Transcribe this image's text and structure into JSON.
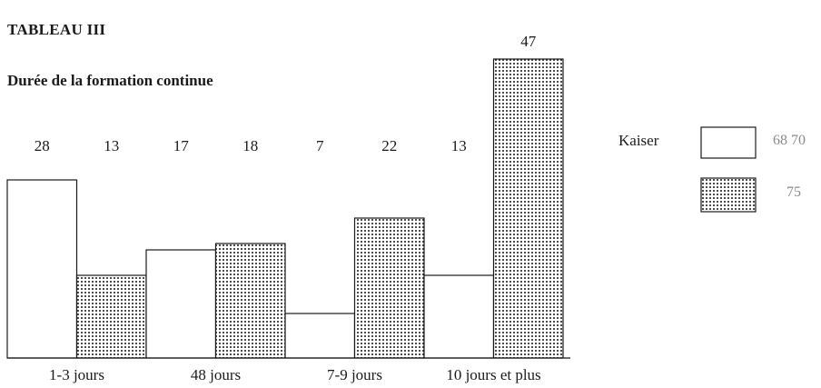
{
  "title": "TABLEAU III",
  "subtitle": "Durée de la formation continue",
  "legend": {
    "label": "Kaiser",
    "items": [
      {
        "label": "68 70",
        "pattern": "open"
      },
      {
        "label": "75",
        "pattern": "dotted"
      }
    ]
  },
  "chart_data": {
    "type": "bar",
    "title": "Durée de la formation continue",
    "categories": [
      "1-3 jours",
      "48 jours",
      "7-9 jours",
      "10 jours et plus"
    ],
    "series": [
      {
        "name": "68 70",
        "values": [
          28,
          17,
          7,
          13
        ]
      },
      {
        "name": "75",
        "values": [
          13,
          18,
          22,
          47
        ]
      }
    ],
    "data_labels": [
      "28",
      "13",
      "17",
      "18",
      "7",
      "22",
      "13",
      "47"
    ],
    "ylim": [
      0,
      50
    ],
    "grid": false,
    "legend_position": "right"
  },
  "colors": {
    "ink": "#1a1a1a",
    "open_fill": "#ffffff",
    "dot": "#1a1a1a"
  }
}
